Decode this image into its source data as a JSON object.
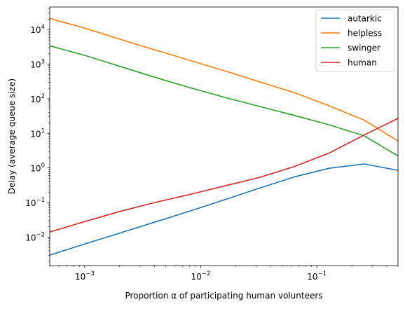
{
  "chart_data": {
    "type": "line",
    "xlabel": "Proportion α of participating human volunteers",
    "ylabel": "Delay (average queue size)",
    "xscale": "log",
    "yscale": "log",
    "xlim": [
      0.0005,
      0.5
    ],
    "ylim": [
      0.0015,
      45000
    ],
    "x_ticks": [
      {
        "value": 0.001,
        "base": "10",
        "exp": "−3"
      },
      {
        "value": 0.01,
        "base": "10",
        "exp": "−2"
      },
      {
        "value": 0.1,
        "base": "10",
        "exp": "−1"
      }
    ],
    "y_ticks": [
      {
        "value": 0.01,
        "base": "10",
        "exp": "−2"
      },
      {
        "value": 0.1,
        "base": "10",
        "exp": "−1"
      },
      {
        "value": 1,
        "base": "10",
        "exp": "0"
      },
      {
        "value": 10,
        "base": "10",
        "exp": "1"
      },
      {
        "value": 100,
        "base": "10",
        "exp": "2"
      },
      {
        "value": 1000,
        "base": "10",
        "exp": "3"
      },
      {
        "value": 10000,
        "base": "10",
        "exp": "4"
      }
    ],
    "grid": false,
    "legend": "top-right",
    "series": [
      {
        "name": "autarkic",
        "color": "#1f77b4",
        "x": [
          0.0005,
          0.001,
          0.002,
          0.004,
          0.008,
          0.016,
          0.032,
          0.064,
          0.128,
          0.256,
          0.5
        ],
        "y": [
          0.003,
          0.0063,
          0.013,
          0.027,
          0.056,
          0.12,
          0.26,
          0.55,
          0.98,
          1.3,
          0.85
        ]
      },
      {
        "name": "helpless",
        "color": "#ff7f0e",
        "x": [
          0.0005,
          0.001,
          0.002,
          0.004,
          0.008,
          0.016,
          0.032,
          0.064,
          0.128,
          0.256,
          0.5
        ],
        "y": [
          21000,
          11000,
          5300,
          2600,
          1300,
          640,
          310,
          150,
          62,
          24,
          6
        ]
      },
      {
        "name": "swinger",
        "color": "#2ca02c",
        "x": [
          0.0005,
          0.001,
          0.002,
          0.004,
          0.008,
          0.016,
          0.032,
          0.064,
          0.128,
          0.256,
          0.5
        ],
        "y": [
          3400,
          1800,
          870,
          420,
          210,
          110,
          60,
          33,
          17.5,
          8.5,
          2.2
        ]
      },
      {
        "name": "human",
        "color": "#d62728",
        "x": [
          0.0005,
          0.001,
          0.002,
          0.004,
          0.008,
          0.016,
          0.032,
          0.064,
          0.128,
          0.256,
          0.5
        ],
        "y": [
          0.014,
          0.028,
          0.055,
          0.1,
          0.17,
          0.3,
          0.53,
          1.1,
          2.7,
          9.0,
          27
        ]
      }
    ]
  }
}
